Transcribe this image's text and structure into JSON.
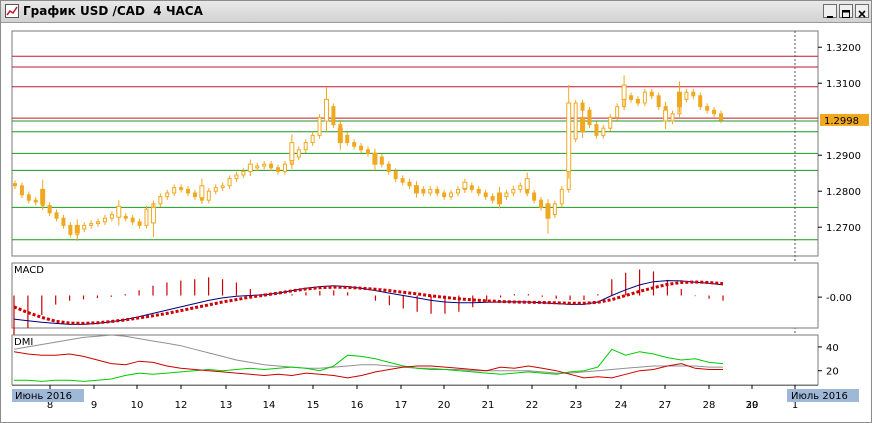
{
  "window": {
    "title": "График USD /CAD  4 ЧАСА"
  },
  "colors": {
    "candle": "#f0a820",
    "resistance": "#c0182a",
    "support": "#199a19",
    "macd_line": "#000080",
    "macd_signal": "#cc0000",
    "macd_hist": "#cc0000",
    "dmi_adx": "#909090",
    "dmi_plus": "#00cc00",
    "dmi_minus": "#cc0000",
    "price_tag": "#f0a820"
  },
  "chart_data": [
    {
      "type": "candlestick",
      "ylim": [
        1.262,
        1.3245
      ],
      "yticks": [
        "1.3200",
        "1.3100",
        "1.2900",
        "1.2800",
        "1.2700"
      ],
      "ytick_values": [
        1.32,
        1.31,
        1.29,
        1.28,
        1.27
      ],
      "last_price": 1.2998,
      "last_price_label": "1.2998",
      "resistance_levels": [
        1.3175,
        1.3145,
        1.309,
        1.3003
      ],
      "support_levels": [
        1.2995,
        1.2965,
        1.2905,
        1.2858,
        1.2755,
        1.2665
      ],
      "x_labels": [
        "8",
        "9",
        "10",
        "12",
        "13",
        "14",
        "15",
        "16",
        "17",
        "20",
        "21",
        "22",
        "23",
        "24",
        "27",
        "28",
        "29",
        "30",
        "1"
      ],
      "month_labels": [
        "Июнь 2016",
        "Июль 2016"
      ],
      "price_series": [
        1.2815,
        1.279,
        1.2775,
        1.277,
        1.276,
        1.274,
        1.2725,
        1.2705,
        1.268,
        1.2695,
        1.2705,
        1.271,
        1.2715,
        1.2725,
        1.2735,
        1.273,
        1.2725,
        1.2715,
        1.2705,
        1.275,
        1.2765,
        1.2785,
        1.2795,
        1.281,
        1.2805,
        1.2795,
        1.2785,
        1.2775,
        1.28,
        1.281,
        1.2815,
        1.2835,
        1.2845,
        1.2855,
        1.2865,
        1.287,
        1.2875,
        1.2865,
        1.2855,
        1.2875,
        1.2895,
        1.2915,
        1.2935,
        1.2955,
        1.3005,
        1.3035,
        1.2985,
        1.2955,
        1.2935,
        1.2925,
        1.2915,
        1.2905,
        1.2895,
        1.2875,
        1.2855,
        1.2835,
        1.2825,
        1.2815,
        1.2805,
        1.2795,
        1.2805,
        1.2795,
        1.2785,
        1.2795,
        1.2805,
        1.2815,
        1.2805,
        1.2795,
        1.2785,
        1.2775,
        1.2785,
        1.2795,
        1.2805,
        1.2815,
        1.2795,
        1.2775,
        1.2755,
        1.2735,
        1.2765,
        1.2805,
        1.2945,
        1.3045,
        1.3025,
        1.2985,
        1.2955,
        1.2975,
        1.3005,
        1.3035,
        1.3065,
        1.3055,
        1.3045,
        1.3075,
        1.3065,
        1.3035,
        1.2995,
        1.3015,
        1.3055,
        1.3075,
        1.3065,
        1.3035,
        1.3025,
        1.3015,
        1.2998
      ],
      "candles": [
        {
          "i": 4,
          "o": 1.2805,
          "c": 1.2765,
          "h": 1.2832,
          "l": 1.2748
        },
        {
          "i": 9,
          "o": 1.2705,
          "c": 1.2685,
          "h": 1.2722,
          "l": 1.2662
        },
        {
          "i": 15,
          "o": 1.2728,
          "c": 1.2758,
          "h": 1.2775,
          "l": 1.2705
        },
        {
          "i": 20,
          "o": 1.2712,
          "c": 1.2755,
          "h": 1.2768,
          "l": 1.2672
        },
        {
          "i": 27,
          "o": 1.2782,
          "c": 1.2815,
          "h": 1.2835,
          "l": 1.2765
        },
        {
          "i": 34,
          "o": 1.2855,
          "c": 1.2875,
          "h": 1.2888,
          "l": 1.2842
        },
        {
          "i": 40,
          "o": 1.2885,
          "c": 1.2935,
          "h": 1.2958,
          "l": 1.2862
        },
        {
          "i": 45,
          "o": 1.2995,
          "c": 1.3055,
          "h": 1.3088,
          "l": 1.2965
        },
        {
          "i": 47,
          "o": 1.2975,
          "c": 1.2935,
          "h": 1.2998,
          "l": 1.2915
        },
        {
          "i": 52,
          "o": 1.2905,
          "c": 1.2875,
          "h": 1.2918,
          "l": 1.2858
        },
        {
          "i": 58,
          "o": 1.2815,
          "c": 1.2795,
          "h": 1.2828,
          "l": 1.2782
        },
        {
          "i": 65,
          "o": 1.2808,
          "c": 1.2825,
          "h": 1.2835,
          "l": 1.2795
        },
        {
          "i": 70,
          "o": 1.2795,
          "c": 1.2765,
          "h": 1.2812,
          "l": 1.2752
        },
        {
          "i": 74,
          "o": 1.2805,
          "c": 1.2835,
          "h": 1.2852,
          "l": 1.2788
        },
        {
          "i": 77,
          "o": 1.2765,
          "c": 1.2725,
          "h": 1.2778,
          "l": 1.2682
        },
        {
          "i": 80,
          "o": 1.2855,
          "c": 1.3045,
          "h": 1.3095,
          "l": 1.2835
        },
        {
          "i": 82,
          "o": 1.3005,
          "c": 1.2965,
          "h": 1.3025,
          "l": 1.2948
        },
        {
          "i": 88,
          "o": 1.3055,
          "c": 1.3095,
          "h": 1.3122,
          "l": 1.3025
        },
        {
          "i": 94,
          "o": 1.2995,
          "c": 1.3025,
          "h": 1.3048,
          "l": 1.2972
        },
        {
          "i": 96,
          "o": 1.3075,
          "c": 1.3035,
          "h": 1.3105,
          "l": 1.3018
        }
      ]
    },
    {
      "type": "line",
      "title": "MACD",
      "ylim": [
        -0.02,
        0.02
      ],
      "yticks": [
        "-0.00"
      ],
      "ytick_values": [
        -0.001
      ],
      "series": [
        {
          "key": "macd",
          "values": [
            -0.0145,
            -0.0155,
            -0.0165,
            -0.0172,
            -0.0178,
            -0.0178,
            -0.0172,
            -0.0162,
            -0.0148,
            -0.013,
            -0.011,
            -0.009,
            -0.007,
            -0.005,
            -0.003,
            -0.0015,
            -0.0005,
            0.0,
            0.0005,
            0.0015,
            0.003,
            0.0045,
            0.0055,
            0.006,
            0.0055,
            0.0045,
            0.003,
            0.0015,
            0.0,
            -0.0015,
            -0.003,
            -0.004,
            -0.0045,
            -0.0045,
            -0.0042,
            -0.004,
            -0.0038,
            -0.004,
            -0.0045,
            -0.005,
            -0.0055,
            -0.0055,
            -0.004,
            0.0,
            0.0035,
            0.0065,
            0.0085,
            0.0092,
            0.009,
            0.0082,
            0.0075,
            0.0065
          ]
        },
        {
          "key": "signal",
          "values": [
            -0.007,
            -0.0105,
            -0.0135,
            -0.0158,
            -0.017,
            -0.0172,
            -0.0168,
            -0.016,
            -0.015,
            -0.0138,
            -0.0125,
            -0.011,
            -0.0093,
            -0.0075,
            -0.0058,
            -0.004,
            -0.0025,
            -0.001,
            0.0002,
            0.0015,
            0.0028,
            0.004,
            0.0048,
            0.0052,
            0.005,
            0.0045,
            0.0038,
            0.003,
            0.002,
            0.001,
            -0.0002,
            -0.0012,
            -0.002,
            -0.0027,
            -0.0033,
            -0.0037,
            -0.004,
            -0.0042,
            -0.0043,
            -0.0045,
            -0.0048,
            -0.0048,
            -0.0042,
            -0.0025,
            0.0,
            0.0025,
            0.0048,
            0.0068,
            0.008,
            0.0083,
            0.008,
            0.0073
          ]
        }
      ]
    },
    {
      "type": "line",
      "title": "DMI",
      "ylim": [
        8,
        50
      ],
      "yticks": [
        "40",
        "20"
      ],
      "ytick_values": [
        40,
        20
      ],
      "series": [
        {
          "key": "adx",
          "values": [
            38,
            40,
            42,
            44,
            46,
            48,
            49,
            50,
            49,
            47,
            45,
            43,
            41,
            38,
            35,
            32,
            29,
            27,
            25,
            24,
            23,
            22,
            22,
            23,
            24,
            25,
            25,
            24,
            23,
            22,
            22,
            21,
            21,
            20,
            20,
            20,
            20,
            20,
            19,
            18,
            18,
            19,
            20,
            21,
            22,
            23,
            24,
            24,
            24,
            24,
            23,
            23
          ]
        },
        {
          "key": "plus_di",
          "values": [
            12,
            12,
            11,
            12,
            12,
            11,
            12,
            13,
            16,
            18,
            17,
            18,
            19,
            20,
            21,
            20,
            21,
            22,
            21,
            22,
            23,
            22,
            20,
            24,
            33,
            32,
            30,
            27,
            24,
            22,
            21,
            21,
            20,
            19,
            18,
            17,
            18,
            19,
            18,
            17,
            19,
            20,
            23,
            38,
            33,
            36,
            34,
            31,
            29,
            30,
            27,
            26
          ]
        },
        {
          "key": "minus_di",
          "values": [
            36,
            34,
            33,
            33,
            34,
            32,
            29,
            26,
            25,
            28,
            27,
            24,
            22,
            21,
            20,
            19,
            18,
            17,
            16,
            17,
            16,
            18,
            17,
            16,
            14,
            16,
            19,
            21,
            23,
            24,
            24,
            23,
            22,
            21,
            20,
            23,
            22,
            24,
            22,
            20,
            17,
            14,
            15,
            14,
            17,
            20,
            21,
            24,
            26,
            22,
            21,
            21
          ]
        }
      ]
    }
  ]
}
